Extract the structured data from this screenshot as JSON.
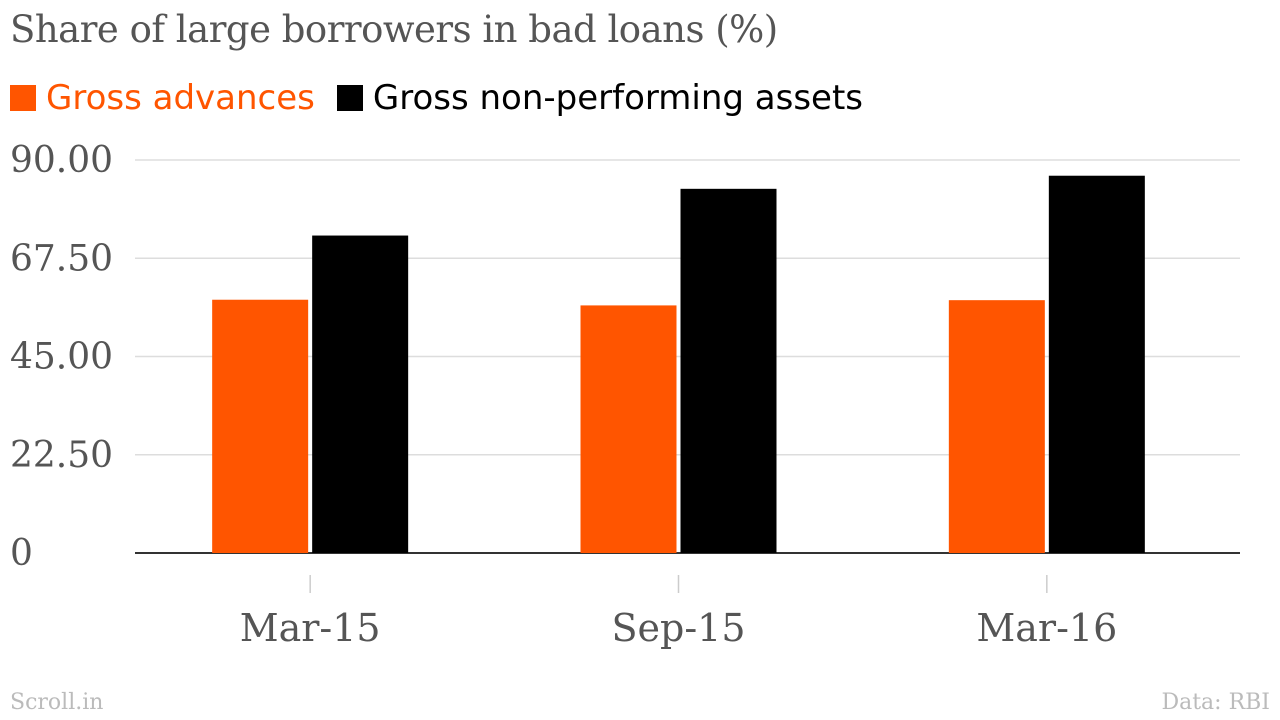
{
  "chart_data": {
    "type": "bar",
    "title": "Share of large borrowers in bad loans (%)",
    "categories": [
      "Mar-15",
      "Sep-15",
      "Mar-16"
    ],
    "series": [
      {
        "name": "Gross advances",
        "color": "#ff5500",
        "values": [
          58,
          56.7,
          57.9
        ]
      },
      {
        "name": "Gross non-performing assets",
        "color": "#000000",
        "values": [
          72.7,
          83.4,
          86.4
        ]
      }
    ],
    "yticks": [
      "0",
      "22.50",
      "45.00",
      "67.50",
      "90.00"
    ],
    "ylim": [
      0,
      90
    ],
    "grid": true,
    "legend": "top-left"
  },
  "footer": {
    "source_left": "Scroll.in",
    "source_right": "Data: RBI"
  }
}
